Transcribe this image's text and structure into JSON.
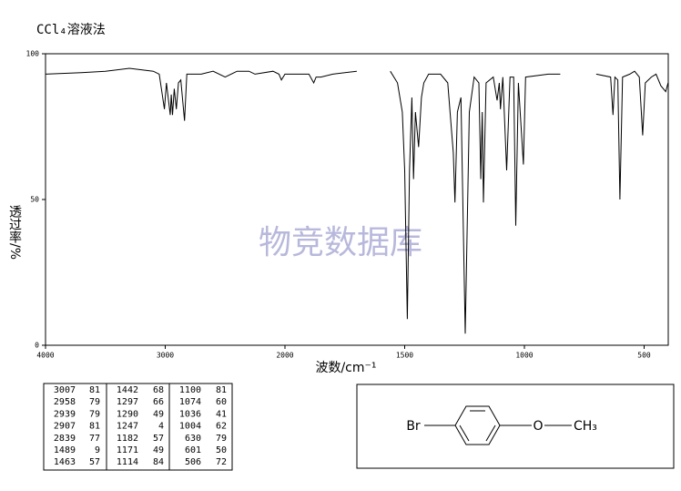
{
  "chart_data": {
    "type": "line",
    "title": "CCl₄溶液法",
    "x_label": "波数/cm⁻¹",
    "y_label": "透过率/%",
    "watermark": "物竞数据库",
    "color": "#000000",
    "xlim": [
      4000,
      400
    ],
    "ylim": [
      0,
      100
    ],
    "xticks": [
      4000,
      3000,
      2000,
      1500,
      1000,
      500
    ],
    "yticks": [
      0,
      50,
      100
    ],
    "x": [
      4000,
      3700,
      3500,
      3300,
      3100,
      3050,
      3007,
      2990,
      2958,
      2950,
      2939,
      2925,
      2907,
      2890,
      2870,
      2839,
      2820,
      2700,
      2600,
      2500,
      2400,
      2300,
      2250,
      2100,
      2050,
      2030,
      2000,
      1900,
      1880,
      1870,
      1850,
      1800,
      1700,
      1680,
      1560,
      1530,
      1510,
      1500,
      1489,
      1480,
      1470,
      1463,
      1455,
      1442,
      1430,
      1420,
      1400,
      1350,
      1320,
      1297,
      1290,
      1280,
      1265,
      1247,
      1230,
      1210,
      1190,
      1182,
      1176,
      1171,
      1160,
      1130,
      1114,
      1105,
      1100,
      1090,
      1074,
      1060,
      1045,
      1036,
      1025,
      1004,
      995,
      900,
      850,
      840,
      700,
      640,
      630,
      622,
      610,
      601,
      590,
      560,
      540,
      520,
      506,
      495,
      470,
      450,
      430,
      410,
      400
    ],
    "values": [
      93,
      93.5,
      94,
      95,
      94,
      93,
      81,
      90,
      79,
      86,
      79,
      88,
      81,
      90,
      91,
      77,
      93,
      93,
      94,
      92,
      94,
      94,
      93,
      94,
      93,
      91,
      93,
      93,
      90,
      92,
      92,
      93,
      94,
      null,
      94,
      90,
      80,
      60,
      9,
      60,
      85,
      57,
      80,
      68,
      85,
      90,
      93,
      93,
      90,
      66,
      49,
      80,
      85,
      4,
      80,
      92,
      90,
      57,
      80,
      49,
      90,
      92,
      84,
      90,
      81,
      92,
      60,
      92,
      92,
      41,
      90,
      62,
      92,
      93,
      93,
      null,
      93,
      92,
      79,
      92,
      91,
      50,
      92,
      93,
      94,
      92,
      72,
      90,
      92,
      93,
      89,
      87,
      90
    ]
  },
  "peak_table": {
    "rows": [
      [
        [
          "3007",
          "81"
        ],
        [
          "1442",
          "68"
        ],
        [
          "1100",
          "81"
        ]
      ],
      [
        [
          "2958",
          "79"
        ],
        [
          "1297",
          "66"
        ],
        [
          "1074",
          "60"
        ]
      ],
      [
        [
          "2939",
          "79"
        ],
        [
          "1290",
          "49"
        ],
        [
          "1036",
          "41"
        ]
      ],
      [
        [
          "2907",
          "81"
        ],
        [
          "1247",
          "4"
        ],
        [
          "1004",
          "62"
        ]
      ],
      [
        [
          "2839",
          "77"
        ],
        [
          "1182",
          "57"
        ],
        [
          "630",
          "79"
        ]
      ],
      [
        [
          "1489",
          "9"
        ],
        [
          "1171",
          "49"
        ],
        [
          "601",
          "50"
        ]
      ],
      [
        [
          "1463",
          "57"
        ],
        [
          "1114",
          "84"
        ],
        [
          "506",
          "72"
        ]
      ]
    ]
  },
  "structure": {
    "left": "Br",
    "oxygen": "O",
    "right": "CH₃"
  }
}
